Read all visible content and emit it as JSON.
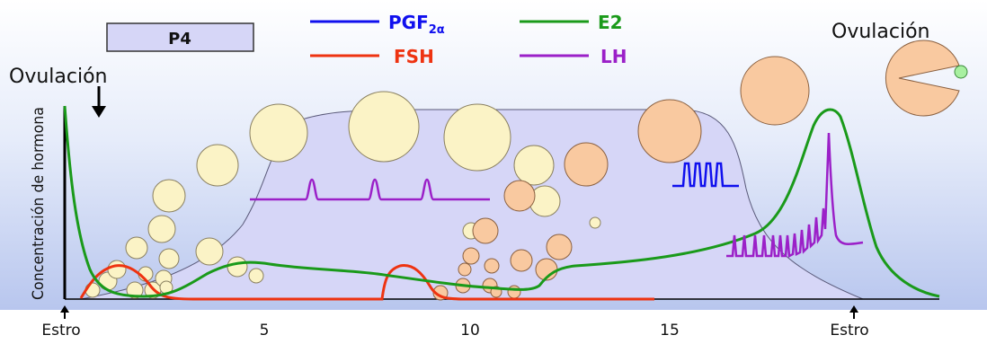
{
  "legend": {
    "p4": "P4",
    "pgf_main": "PGF",
    "pgf_sub": "2α",
    "fsh": "FSH",
    "e2": "E2",
    "lh": "LH"
  },
  "annotations": {
    "ovulation_left": "Ovulación",
    "ovulation_right": "Ovulación"
  },
  "axis": {
    "ylabel": "Concentración de hormona",
    "ticks": [
      "Estro",
      "5",
      "10",
      "15",
      "Estro"
    ]
  },
  "colors": {
    "pgf": "#1010ee",
    "fsh": "#ee3311",
    "e2": "#1a9a1a",
    "lh": "#9b20c8",
    "p4_fill": "#d6d6f7",
    "follicle_small": "#fbf3c6",
    "follicle_large": "#f9c9a0"
  }
}
